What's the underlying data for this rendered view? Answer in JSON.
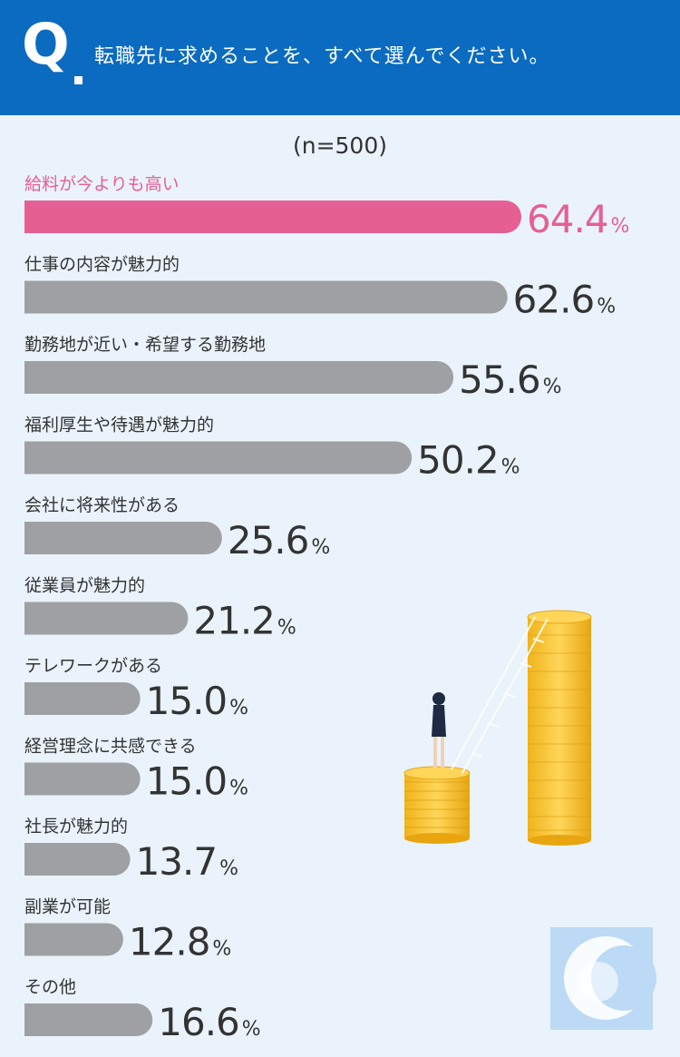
{
  "header": {
    "q_mark": "Q",
    "question": "転職先に求めることを、すべて選んでください。"
  },
  "sample_size": "(n=500)",
  "colors": {
    "header_bg": "#0b6bc0",
    "highlight": "#e65f93",
    "bar_gray": "#9fa0a3",
    "text_dark": "#333333",
    "background": "#eaf3fb"
  },
  "illustration": {
    "icon": "coins-ladder-illustration",
    "logo": "c-logo-icon"
  },
  "chart_data": {
    "type": "bar",
    "orientation": "horizontal",
    "title": "転職先に求めることを、すべて選んでください。",
    "unit": "%",
    "categories": [
      "給料が今よりも高い",
      "仕事の内容が魅力的",
      "勤務地が近い・希望する勤務地",
      "福利厚生や待遇が魅力的",
      "会社に将来性がある",
      "従業員が魅力的",
      "テレワークがある",
      "経営理念に共感できる",
      "社長が魅力的",
      "副業が可能",
      "その他"
    ],
    "values": [
      64.4,
      62.6,
      55.6,
      50.2,
      25.6,
      21.2,
      15.0,
      15.0,
      13.7,
      12.8,
      16.6
    ],
    "value_labels": [
      "64.4",
      "62.6",
      "55.6",
      "50.2",
      "25.6",
      "21.2",
      "15.0",
      "15.0",
      "13.7",
      "12.8",
      "16.6"
    ],
    "highlight_index": 0,
    "xlim": [
      0,
      64.4
    ],
    "grid": false,
    "legend": "none"
  }
}
